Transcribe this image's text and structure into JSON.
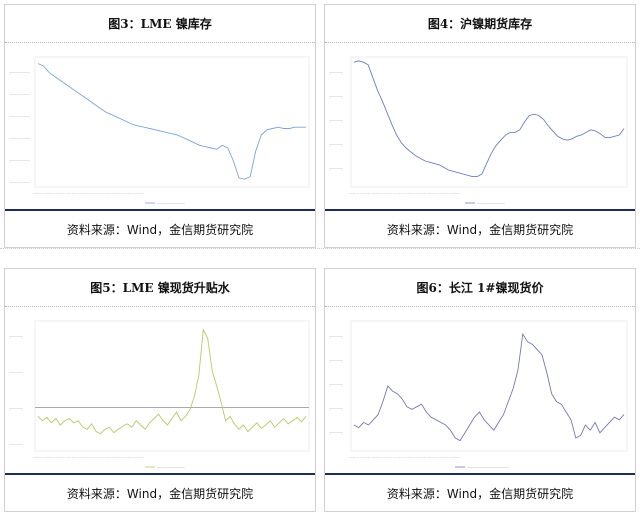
{
  "panels": [
    {
      "title": "图3：LME 镍库存",
      "source": "资料来源：Wind，金信期货研究院",
      "color": "#7fa2d6"
    },
    {
      "title": "图4：沪镍期货库存",
      "source": "资料来源：Wind，金信期货研究院",
      "color": "#6a7fc4"
    },
    {
      "title": "图5：LME 镍现货升贴水",
      "source": "资料来源：Wind，金信期货研究院",
      "color": "#b7c96b"
    },
    {
      "title": "图6：长江 1#镍现货价",
      "source": "资料来源：Wind，金信期货研究院",
      "color": "#7478b0"
    }
  ],
  "chart_data": [
    {
      "type": "line",
      "title": "图3：LME 镍库存",
      "ylim": [
        0,
        100
      ],
      "series": [
        {
          "values": [
            95,
            93,
            88,
            85,
            82,
            79,
            76,
            73,
            70,
            67,
            64,
            61,
            58,
            56,
            54,
            52,
            50,
            48,
            47,
            46,
            45,
            44,
            43,
            42,
            41,
            40,
            38,
            36,
            34,
            32,
            31,
            30,
            29,
            32,
            30,
            20,
            7,
            6,
            8,
            28,
            40,
            44,
            45,
            46,
            45,
            45,
            46,
            46,
            46
          ]
        }
      ]
    },
    {
      "type": "line",
      "title": "图4：沪镍期货库存",
      "ylim": [
        0,
        100
      ],
      "series": [
        {
          "values": [
            96,
            97,
            96,
            94,
            84,
            74,
            66,
            57,
            48,
            40,
            34,
            30,
            27,
            24,
            22,
            20,
            19,
            18,
            17,
            15,
            13,
            12,
            11,
            10,
            9,
            8,
            8,
            10,
            18,
            26,
            32,
            36,
            40,
            42,
            42,
            44,
            50,
            55,
            56,
            55,
            52,
            47,
            43,
            39,
            37,
            36,
            37,
            39,
            40,
            42,
            44,
            43,
            41,
            38,
            38,
            39,
            40,
            45
          ]
        }
      ]
    },
    {
      "type": "line",
      "title": "图5：LME 镍现货升贴水",
      "ylim": [
        -40,
        80
      ],
      "series": [
        {
          "values": [
            -8,
            -12,
            -9,
            -14,
            -10,
            -16,
            -12,
            -10,
            -14,
            -12,
            -18,
            -20,
            -15,
            -22,
            -24,
            -20,
            -18,
            -23,
            -20,
            -17,
            -15,
            -18,
            -12,
            -16,
            -20,
            -14,
            -10,
            -6,
            -12,
            -16,
            -10,
            -4,
            -12,
            -8,
            -2,
            10,
            30,
            72,
            64,
            34,
            20,
            5,
            -12,
            -8,
            -15,
            -20,
            -16,
            -22,
            -18,
            -14,
            -19,
            -16,
            -12,
            -18,
            -14,
            -10,
            -15,
            -12,
            -9,
            -13,
            -8
          ]
        }
      ]
    },
    {
      "type": "line",
      "title": "图6：长江 1#镍现货价",
      "ylim": [
        0,
        100
      ],
      "series": [
        {
          "values": [
            20,
            18,
            22,
            20,
            24,
            28,
            38,
            50,
            46,
            44,
            40,
            34,
            32,
            34,
            36,
            30,
            26,
            24,
            22,
            20,
            16,
            10,
            8,
            14,
            20,
            26,
            30,
            24,
            20,
            16,
            22,
            28,
            38,
            48,
            62,
            90,
            84,
            82,
            78,
            74,
            60,
            44,
            38,
            36,
            30,
            24,
            10,
            12,
            20,
            16,
            22,
            14,
            18,
            22,
            26,
            24,
            28
          ]
        }
      ]
    }
  ]
}
